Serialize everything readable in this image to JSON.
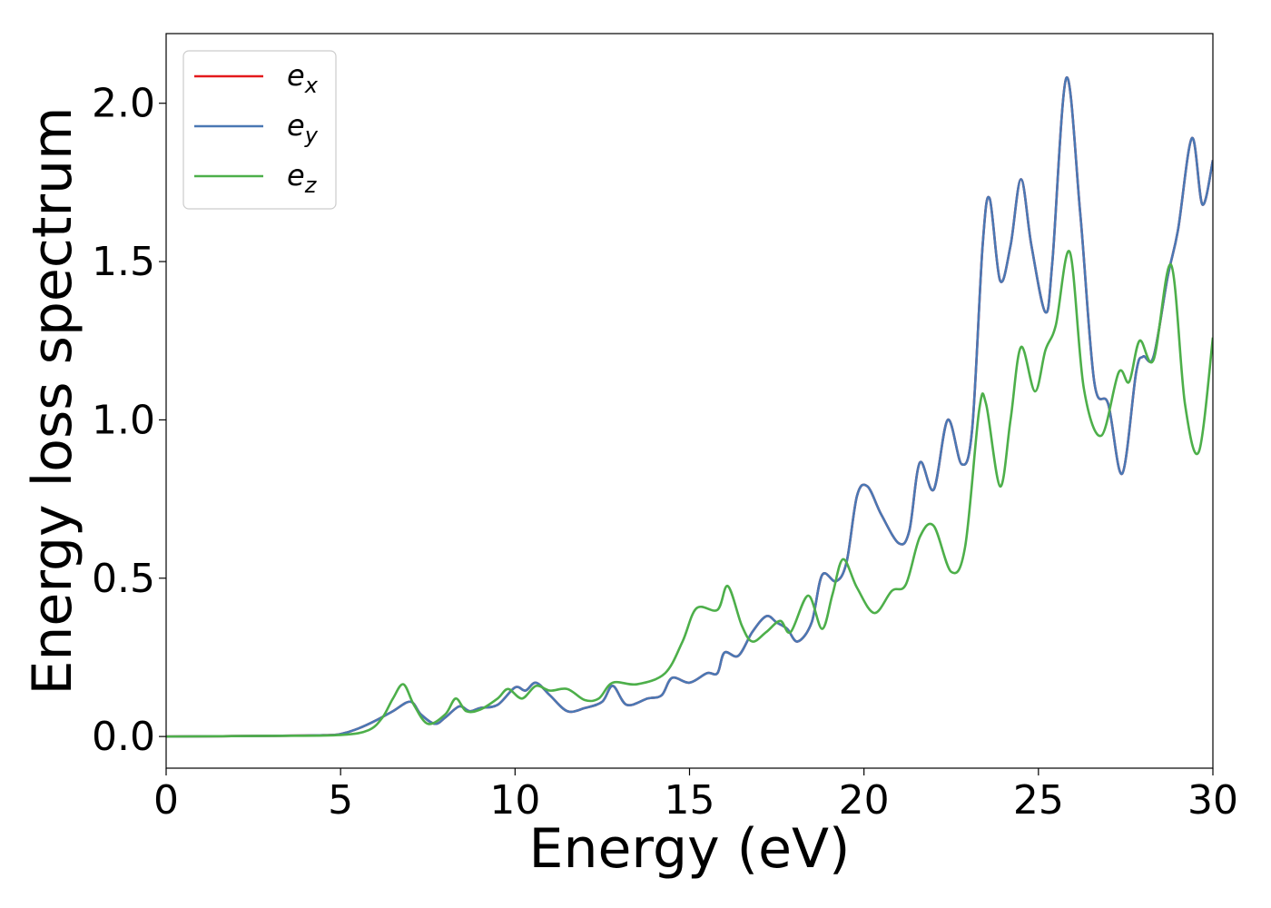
{
  "chart_data": {
    "type": "line",
    "xlabel": "Energy (eV)",
    "ylabel": "Energy loss spectrum",
    "xlim": [
      0,
      30
    ],
    "ylim": [
      -0.1,
      2.22
    ],
    "xticks": [
      "0",
      "5",
      "10",
      "15",
      "20",
      "25",
      "30"
    ],
    "yticks": [
      "0.0",
      "0.5",
      "1.0",
      "1.5",
      "2.0"
    ],
    "grid": false,
    "legend_position": "top-left",
    "series": [
      {
        "name": "e_x",
        "legend_base": "e",
        "legend_sub": "x",
        "color": "#e41a1c",
        "points": [
          [
            0,
            0
          ],
          [
            3,
            0.002
          ],
          [
            4.5,
            0.004
          ],
          [
            5,
            0.008
          ],
          [
            5.5,
            0.025
          ],
          [
            6,
            0.05
          ],
          [
            6.5,
            0.08
          ],
          [
            7,
            0.11
          ],
          [
            7.3,
            0.07
          ],
          [
            7.7,
            0.04
          ],
          [
            8,
            0.06
          ],
          [
            8.4,
            0.095
          ],
          [
            8.7,
            0.08
          ],
          [
            9,
            0.09
          ],
          [
            9.5,
            0.1
          ],
          [
            10,
            0.155
          ],
          [
            10.3,
            0.145
          ],
          [
            10.6,
            0.17
          ],
          [
            11,
            0.13
          ],
          [
            11.5,
            0.08
          ],
          [
            12,
            0.09
          ],
          [
            12.5,
            0.11
          ],
          [
            12.8,
            0.16
          ],
          [
            13.2,
            0.1
          ],
          [
            13.8,
            0.12
          ],
          [
            14.2,
            0.13
          ],
          [
            14.5,
            0.185
          ],
          [
            15,
            0.17
          ],
          [
            15.5,
            0.2
          ],
          [
            15.8,
            0.2
          ],
          [
            16,
            0.265
          ],
          [
            16.4,
            0.255
          ],
          [
            16.8,
            0.33
          ],
          [
            17.2,
            0.38
          ],
          [
            17.5,
            0.36
          ],
          [
            17.8,
            0.34
          ],
          [
            18.1,
            0.3
          ],
          [
            18.5,
            0.36
          ],
          [
            18.8,
            0.51
          ],
          [
            19.2,
            0.49
          ],
          [
            19.5,
            0.55
          ],
          [
            19.8,
            0.76
          ],
          [
            20.1,
            0.79
          ],
          [
            20.5,
            0.7
          ],
          [
            21,
            0.61
          ],
          [
            21.3,
            0.65
          ],
          [
            21.6,
            0.865
          ],
          [
            22,
            0.78
          ],
          [
            22.4,
            1.0
          ],
          [
            22.8,
            0.86
          ],
          [
            23.1,
            0.97
          ],
          [
            23.4,
            1.55
          ],
          [
            23.6,
            1.7
          ],
          [
            23.9,
            1.44
          ],
          [
            24.2,
            1.55
          ],
          [
            24.5,
            1.76
          ],
          [
            24.8,
            1.55
          ],
          [
            25.2,
            1.34
          ],
          [
            25.4,
            1.5
          ],
          [
            25.8,
            2.08
          ],
          [
            26.2,
            1.65
          ],
          [
            26.6,
            1.12
          ],
          [
            27,
            1.05
          ],
          [
            27.4,
            0.83
          ],
          [
            27.8,
            1.15
          ],
          [
            28,
            1.2
          ],
          [
            28.3,
            1.2
          ],
          [
            28.7,
            1.45
          ],
          [
            29,
            1.6
          ],
          [
            29.4,
            1.89
          ],
          [
            29.7,
            1.68
          ],
          [
            30,
            1.82
          ]
        ]
      },
      {
        "name": "e_y",
        "legend_base": "e",
        "legend_sub": "y",
        "color": "#4a78b4",
        "points": [
          [
            0,
            0
          ],
          [
            3,
            0.002
          ],
          [
            4.5,
            0.004
          ],
          [
            5,
            0.008
          ],
          [
            5.5,
            0.025
          ],
          [
            6,
            0.05
          ],
          [
            6.5,
            0.08
          ],
          [
            7,
            0.11
          ],
          [
            7.3,
            0.07
          ],
          [
            7.7,
            0.04
          ],
          [
            8,
            0.06
          ],
          [
            8.4,
            0.095
          ],
          [
            8.7,
            0.08
          ],
          [
            9,
            0.09
          ],
          [
            9.5,
            0.1
          ],
          [
            10,
            0.155
          ],
          [
            10.3,
            0.145
          ],
          [
            10.6,
            0.17
          ],
          [
            11,
            0.13
          ],
          [
            11.5,
            0.08
          ],
          [
            12,
            0.09
          ],
          [
            12.5,
            0.11
          ],
          [
            12.8,
            0.16
          ],
          [
            13.2,
            0.1
          ],
          [
            13.8,
            0.12
          ],
          [
            14.2,
            0.13
          ],
          [
            14.5,
            0.185
          ],
          [
            15,
            0.17
          ],
          [
            15.5,
            0.2
          ],
          [
            15.8,
            0.2
          ],
          [
            16,
            0.265
          ],
          [
            16.4,
            0.255
          ],
          [
            16.8,
            0.33
          ],
          [
            17.2,
            0.38
          ],
          [
            17.5,
            0.36
          ],
          [
            17.8,
            0.34
          ],
          [
            18.1,
            0.3
          ],
          [
            18.5,
            0.36
          ],
          [
            18.8,
            0.51
          ],
          [
            19.2,
            0.49
          ],
          [
            19.5,
            0.55
          ],
          [
            19.8,
            0.76
          ],
          [
            20.1,
            0.79
          ],
          [
            20.5,
            0.7
          ],
          [
            21,
            0.61
          ],
          [
            21.3,
            0.65
          ],
          [
            21.6,
            0.865
          ],
          [
            22,
            0.78
          ],
          [
            22.4,
            1.0
          ],
          [
            22.8,
            0.86
          ],
          [
            23.1,
            0.97
          ],
          [
            23.4,
            1.55
          ],
          [
            23.6,
            1.7
          ],
          [
            23.9,
            1.44
          ],
          [
            24.2,
            1.55
          ],
          [
            24.5,
            1.76
          ],
          [
            24.8,
            1.55
          ],
          [
            25.2,
            1.34
          ],
          [
            25.4,
            1.5
          ],
          [
            25.8,
            2.08
          ],
          [
            26.2,
            1.65
          ],
          [
            26.6,
            1.12
          ],
          [
            27,
            1.05
          ],
          [
            27.4,
            0.83
          ],
          [
            27.8,
            1.15
          ],
          [
            28,
            1.2
          ],
          [
            28.3,
            1.2
          ],
          [
            28.7,
            1.45
          ],
          [
            29,
            1.6
          ],
          [
            29.4,
            1.89
          ],
          [
            29.7,
            1.68
          ],
          [
            30,
            1.82
          ]
        ]
      },
      {
        "name": "e_z",
        "legend_base": "e",
        "legend_sub": "z",
        "color": "#4daf4a",
        "points": [
          [
            0,
            0
          ],
          [
            3,
            0.002
          ],
          [
            5,
            0.005
          ],
          [
            5.8,
            0.02
          ],
          [
            6.2,
            0.06
          ],
          [
            6.5,
            0.12
          ],
          [
            6.8,
            0.165
          ],
          [
            7.1,
            0.1
          ],
          [
            7.5,
            0.04
          ],
          [
            8,
            0.07
          ],
          [
            8.3,
            0.12
          ],
          [
            8.6,
            0.08
          ],
          [
            9,
            0.085
          ],
          [
            9.5,
            0.12
          ],
          [
            9.8,
            0.15
          ],
          [
            10.2,
            0.12
          ],
          [
            10.6,
            0.16
          ],
          [
            11,
            0.145
          ],
          [
            11.5,
            0.15
          ],
          [
            12,
            0.115
          ],
          [
            12.4,
            0.12
          ],
          [
            12.8,
            0.17
          ],
          [
            13.5,
            0.165
          ],
          [
            14.3,
            0.2
          ],
          [
            14.8,
            0.3
          ],
          [
            15.2,
            0.405
          ],
          [
            15.8,
            0.4
          ],
          [
            16.1,
            0.475
          ],
          [
            16.5,
            0.35
          ],
          [
            16.8,
            0.3
          ],
          [
            17.2,
            0.33
          ],
          [
            17.6,
            0.365
          ],
          [
            17.9,
            0.33
          ],
          [
            18.4,
            0.445
          ],
          [
            18.8,
            0.34
          ],
          [
            19.1,
            0.45
          ],
          [
            19.4,
            0.56
          ],
          [
            19.8,
            0.47
          ],
          [
            20.3,
            0.39
          ],
          [
            20.8,
            0.46
          ],
          [
            21.2,
            0.48
          ],
          [
            21.6,
            0.63
          ],
          [
            22,
            0.665
          ],
          [
            22.5,
            0.52
          ],
          [
            22.9,
            0.6
          ],
          [
            23.3,
            1.03
          ],
          [
            23.5,
            1.05
          ],
          [
            23.9,
            0.79
          ],
          [
            24.2,
            1.0
          ],
          [
            24.5,
            1.23
          ],
          [
            24.9,
            1.09
          ],
          [
            25.2,
            1.22
          ],
          [
            25.5,
            1.3
          ],
          [
            25.9,
            1.53
          ],
          [
            26.3,
            1.1
          ],
          [
            26.8,
            0.95
          ],
          [
            27.3,
            1.15
          ],
          [
            27.6,
            1.12
          ],
          [
            27.9,
            1.25
          ],
          [
            28.3,
            1.19
          ],
          [
            28.8,
            1.49
          ],
          [
            29.2,
            1.05
          ],
          [
            29.6,
            0.9
          ],
          [
            30,
            1.26
          ]
        ]
      }
    ]
  }
}
